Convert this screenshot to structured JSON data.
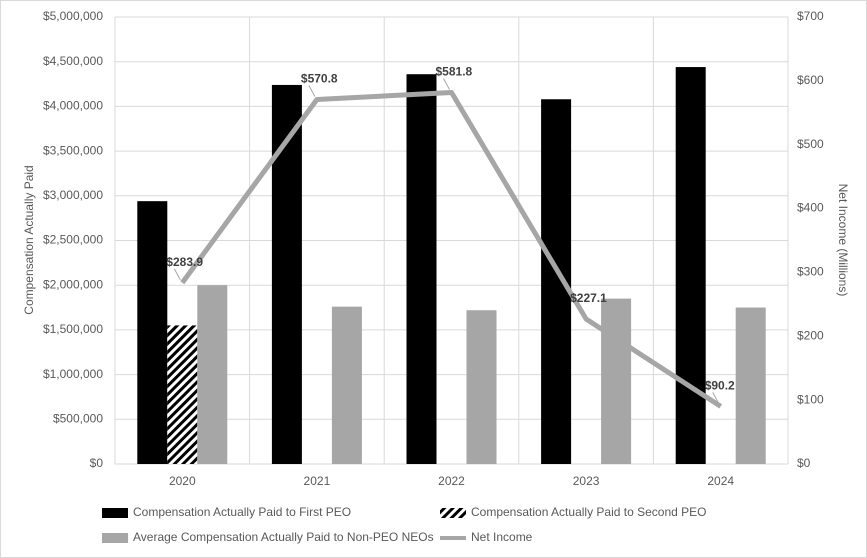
{
  "chart_data": {
    "type": "bar-line",
    "categories": [
      "2020",
      "2021",
      "2022",
      "2023",
      "2024"
    ],
    "y_label": "Compensation Actually Paid",
    "y2_label": "Net Income (Millions)",
    "ylim": [
      0,
      5000000
    ],
    "yticks": [
      {
        "value": 0,
        "label": "$0"
      },
      {
        "value": 500000,
        "label": "$500,000"
      },
      {
        "value": 1000000,
        "label": "$1,000,000"
      },
      {
        "value": 1500000,
        "label": "$1,500,000"
      },
      {
        "value": 2000000,
        "label": "$2,000,000"
      },
      {
        "value": 2500000,
        "label": "$2,500,000"
      },
      {
        "value": 3000000,
        "label": "$3,000,000"
      },
      {
        "value": 3500000,
        "label": "$3,500,000"
      },
      {
        "value": 4000000,
        "label": "$4,000,000"
      },
      {
        "value": 4500000,
        "label": "$4,500,000"
      },
      {
        "value": 5000000,
        "label": "$5,000,000"
      }
    ],
    "y2lim": [
      0,
      700
    ],
    "y2ticks": [
      {
        "value": 0,
        "label": "$0"
      },
      {
        "value": 100,
        "label": "$100"
      },
      {
        "value": 200,
        "label": "$200"
      },
      {
        "value": 300,
        "label": "$300"
      },
      {
        "value": 400,
        "label": "$400"
      },
      {
        "value": 500,
        "label": "$500"
      },
      {
        "value": 600,
        "label": "$600"
      },
      {
        "value": 700,
        "label": "$700"
      }
    ],
    "grid": true,
    "series": [
      {
        "name": "Compensation Actually Paid to First PEO",
        "type": "bar",
        "color": "#000000",
        "values": [
          2940000,
          4240000,
          4360000,
          4080000,
          4440000
        ]
      },
      {
        "name": "Compensation Actually Paid to Second PEO",
        "type": "bar",
        "color": "#000000",
        "hatch": true,
        "values": [
          1550000,
          null,
          null,
          null,
          null
        ]
      },
      {
        "name": "Average Compensation Actually Paid to Non-PEO NEOs",
        "type": "bar",
        "color": "#a6a6a6",
        "values": [
          2000000,
          1760000,
          1720000,
          1850000,
          1750000
        ]
      },
      {
        "name": "Net Income",
        "type": "line",
        "axis": "y2",
        "color": "#a6a6a6",
        "values": [
          283.9,
          570.8,
          581.8,
          227.1,
          90.2
        ],
        "value_labels": [
          "$283.9",
          "$570.8",
          "$581.8",
          "$227.1",
          "$90.2"
        ]
      }
    ]
  }
}
